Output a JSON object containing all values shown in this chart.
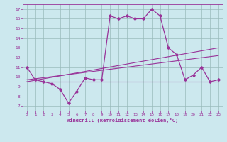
{
  "xlabel": "Windchill (Refroidissement éolien,°C)",
  "background_color": "#cce8ee",
  "line_color": "#993399",
  "grid_color": "#99bbbb",
  "xlim": [
    -0.5,
    23.5
  ],
  "ylim": [
    6.5,
    17.5
  ],
  "xticks": [
    0,
    1,
    2,
    3,
    4,
    5,
    6,
    7,
    8,
    9,
    10,
    11,
    12,
    13,
    14,
    15,
    16,
    17,
    18,
    19,
    20,
    21,
    22,
    23
  ],
  "yticks": [
    7,
    8,
    9,
    10,
    11,
    12,
    13,
    14,
    15,
    16,
    17
  ],
  "line1_x": [
    0,
    1,
    2,
    3,
    4,
    5,
    6,
    7,
    8,
    9,
    10,
    11,
    12,
    13,
    14,
    15,
    16,
    17,
    18,
    19,
    20,
    21,
    22,
    23
  ],
  "line1_y": [
    11.0,
    9.7,
    9.5,
    9.3,
    8.7,
    7.3,
    8.5,
    9.9,
    9.7,
    9.7,
    16.3,
    16.0,
    16.3,
    16.0,
    16.0,
    17.0,
    16.3,
    13.0,
    12.3,
    9.7,
    10.2,
    11.0,
    9.5,
    9.7
  ],
  "line2_x": [
    0,
    23
  ],
  "line2_y": [
    9.5,
    9.5
  ],
  "line3_x": [
    0,
    23
  ],
  "line3_y": [
    9.5,
    13.0
  ],
  "line4_x": [
    0,
    23
  ],
  "line4_y": [
    9.7,
    12.2
  ]
}
